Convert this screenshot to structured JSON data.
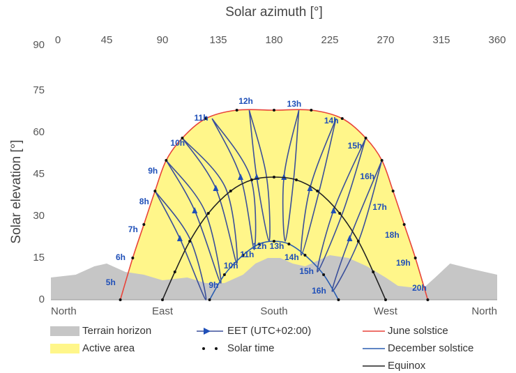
{
  "chart_data": {
    "type": "sunpath",
    "title": "Solar azimuth [°]",
    "y_label": "Solar elevation [°]",
    "xlim": [
      0,
      360
    ],
    "xticks": [
      0,
      45,
      90,
      135,
      180,
      225,
      270,
      315,
      360
    ],
    "direction_ticks": [
      {
        "value": 0,
        "label": "North"
      },
      {
        "value": 90,
        "label": "East"
      },
      {
        "value": 180,
        "label": "South"
      },
      {
        "value": 270,
        "label": "West"
      },
      {
        "value": 360,
        "label": "North"
      }
    ],
    "ylim": [
      0,
      90
    ],
    "yticks": [
      0,
      15,
      30,
      45,
      60,
      75,
      90
    ],
    "terrain": {
      "name": "Terrain horizon",
      "color": "#c6c6c6",
      "x": [
        0,
        20,
        35,
        45,
        55,
        60,
        75,
        90,
        110,
        125,
        140,
        155,
        165,
        175,
        185,
        195,
        205,
        215,
        225,
        240,
        255,
        270,
        280,
        300,
        310,
        322,
        340,
        360
      ],
      "y": [
        8,
        9,
        12,
        13,
        11,
        10,
        9,
        7,
        8,
        6,
        6,
        9,
        13,
        15,
        15,
        13,
        12,
        14,
        16,
        15,
        12,
        8,
        5,
        4,
        8,
        13,
        11,
        9
      ]
    },
    "active_area": {
      "name": "Active area",
      "color": "#fff68a"
    },
    "series": [
      {
        "name": "June solstice",
        "color": "#e8443a",
        "x": [
          56,
          66,
          75,
          84,
          93,
          106,
          125,
          150,
          180,
          210,
          235,
          254,
          267,
          276,
          285,
          294,
          304
        ],
        "y": [
          0,
          15,
          27,
          39,
          50,
          58,
          65,
          68,
          68,
          68,
          65,
          58,
          50,
          39,
          27,
          15,
          0
        ]
      },
      {
        "name": "December solstice",
        "color": "#2a5db0",
        "x": [
          128,
          140,
          155,
          168,
          180,
          192,
          205,
          220,
          232
        ],
        "y": [
          0,
          9,
          16,
          20,
          21,
          20,
          16,
          9,
          0
        ]
      },
      {
        "name": "Equinox",
        "color": "#222222",
        "x": [
          90,
          100,
          112,
          127,
          145,
          162,
          180,
          198,
          215,
          233,
          248,
          260,
          270
        ],
        "y": [
          0,
          10,
          21,
          31,
          39,
          43,
          44,
          43,
          39,
          31,
          21,
          10,
          0
        ]
      }
    ],
    "analemma": {
      "name": "EET (UTC+02:00)",
      "color": "#3a4f9a",
      "paths": [
        {
          "x": [
            84,
            104,
            125,
            112,
            84
          ],
          "y": [
            39,
            22,
            0,
            22,
            39
          ]
        },
        {
          "x": [
            93,
            116,
            137,
            124,
            93
          ],
          "y": [
            50,
            32,
            6,
            32,
            50
          ]
        },
        {
          "x": [
            106,
            133,
            150,
            141,
            106
          ],
          "y": [
            58,
            40,
            13,
            40,
            58
          ]
        },
        {
          "x": [
            130,
            153,
            164,
            161,
            130
          ],
          "y": [
            65,
            44,
            18,
            44,
            65
          ]
        },
        {
          "x": [
            160,
            166,
            176,
            174,
            160
          ],
          "y": [
            68,
            44,
            21,
            44,
            68
          ]
        },
        {
          "x": [
            200,
            188,
            189,
            196,
            200
          ],
          "y": [
            68,
            44,
            21,
            44,
            68
          ]
        },
        {
          "x": [
            230,
            209,
            202,
            217,
            230
          ],
          "y": [
            65,
            40,
            16,
            40,
            65
          ]
        },
        {
          "x": [
            254,
            228,
            215,
            236,
            254
          ],
          "y": [
            58,
            32,
            10,
            32,
            58
          ]
        },
        {
          "x": [
            267,
            241,
            227,
            249,
            267
          ],
          "y": [
            50,
            22,
            3,
            22,
            50
          ]
        }
      ]
    },
    "solar_time_label": "Solar time",
    "hour_labels": [
      {
        "label": "5h",
        "azimuth": 55,
        "elevation": 6
      },
      {
        "label": "6h",
        "azimuth": 63,
        "elevation": 15
      },
      {
        "label": "7h",
        "azimuth": 73,
        "elevation": 25
      },
      {
        "label": "8h",
        "azimuth": 82,
        "elevation": 35
      },
      {
        "label": "9h",
        "azimuth": 89,
        "elevation": 46
      },
      {
        "label": "10h",
        "azimuth": 109,
        "elevation": 56
      },
      {
        "label": "11h",
        "azimuth": 128,
        "elevation": 65
      },
      {
        "label": "12h",
        "azimuth": 164,
        "elevation": 71
      },
      {
        "label": "13h",
        "azimuth": 203,
        "elevation": 70
      },
      {
        "label": "14h",
        "azimuth": 233,
        "elevation": 64
      },
      {
        "label": "15h",
        "azimuth": 252,
        "elevation": 55
      },
      {
        "label": "16h",
        "azimuth": 262,
        "elevation": 44
      },
      {
        "label": "17h",
        "azimuth": 272,
        "elevation": 33
      },
      {
        "label": "18h",
        "azimuth": 282,
        "elevation": 23
      },
      {
        "label": "19h",
        "azimuth": 291,
        "elevation": 13
      },
      {
        "label": "20h",
        "azimuth": 304,
        "elevation": 4
      },
      {
        "label": "9h",
        "azimuth": 138,
        "elevation": 5
      },
      {
        "label": "10h",
        "azimuth": 152,
        "elevation": 12
      },
      {
        "label": "11h",
        "azimuth": 165,
        "elevation": 16
      },
      {
        "label": "12h",
        "azimuth": 175,
        "elevation": 19
      },
      {
        "label": "13h",
        "azimuth": 189,
        "elevation": 19
      },
      {
        "label": "14h",
        "azimuth": 201,
        "elevation": 15
      },
      {
        "label": "15h",
        "azimuth": 213,
        "elevation": 10
      },
      {
        "label": "16h",
        "azimuth": 223,
        "elevation": 3
      }
    ]
  }
}
